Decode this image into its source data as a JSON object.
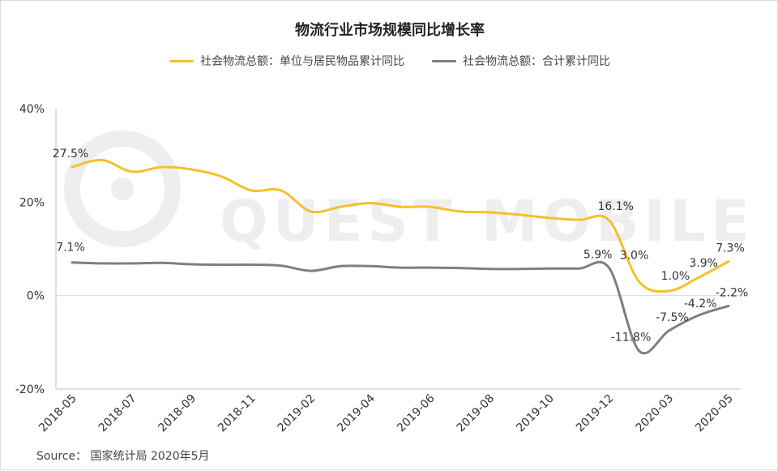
{
  "colors": {
    "series_1": "#F5C02A",
    "series_2": "#7F7F7F",
    "axis": "#bfbfbf",
    "text": "#333333",
    "watermark": "#eeeeee"
  },
  "source": "Source： 国家统计局 2020年5月",
  "watermark": "QUEST MOBILE",
  "chart_data": {
    "type": "line",
    "title": "物流行业市场规模同比增长率",
    "xlabel": "",
    "ylabel": "",
    "ylim": [
      -20,
      40
    ],
    "y_ticks": [
      "-20%",
      "0%",
      "20%",
      "40%"
    ],
    "y_tick_values": [
      -20,
      0,
      20,
      40
    ],
    "x_tick_labels": [
      "2018-05",
      "2018-07",
      "2018-09",
      "2018-11",
      "2019-02",
      "2019-04",
      "2019-06",
      "2019-08",
      "2019-10",
      "2019-12",
      "2020-03",
      "2020-05"
    ],
    "x": [
      "2018-05",
      "2018-06",
      "2018-07",
      "2018-08",
      "2018-09",
      "2018-10",
      "2018-11",
      "2018-12",
      "2019-02",
      "2019-03",
      "2019-04",
      "2019-05",
      "2019-06",
      "2019-07",
      "2019-08",
      "2019-09",
      "2019-10",
      "2019-11",
      "2019-12",
      "2020-02",
      "2020-03",
      "2020-04",
      "2020-05"
    ],
    "legend_position": "top",
    "grid": false,
    "series": [
      {
        "name": "社会物流总额：单位与居民物品累计同比",
        "values": [
          27.5,
          29.0,
          26.5,
          27.5,
          27.0,
          25.5,
          22.5,
          22.5,
          18.0,
          19.0,
          19.8,
          19.0,
          19.0,
          18.0,
          17.8,
          17.3,
          16.6,
          16.2,
          16.1,
          3.0,
          1.0,
          3.9,
          7.3
        ],
        "point_labels": {
          "0": "27.5%",
          "18": "16.1%",
          "19": "3.0%",
          "20": "1.0%",
          "21": "3.9%",
          "22": "7.3%"
        }
      },
      {
        "name": "社会物流总额：合计累计同比",
        "values": [
          7.1,
          6.9,
          6.9,
          7.0,
          6.7,
          6.6,
          6.6,
          6.4,
          5.3,
          6.3,
          6.3,
          6.0,
          6.0,
          5.9,
          5.7,
          5.7,
          5.8,
          5.8,
          5.9,
          -11.8,
          -7.5,
          -4.2,
          -2.2
        ],
        "point_labels": {
          "0": "7.1%",
          "18": "5.9%",
          "19": "-11.8%",
          "20": "-7.5%",
          "21": "-4.2%",
          "22": "-2.2%"
        }
      }
    ]
  }
}
